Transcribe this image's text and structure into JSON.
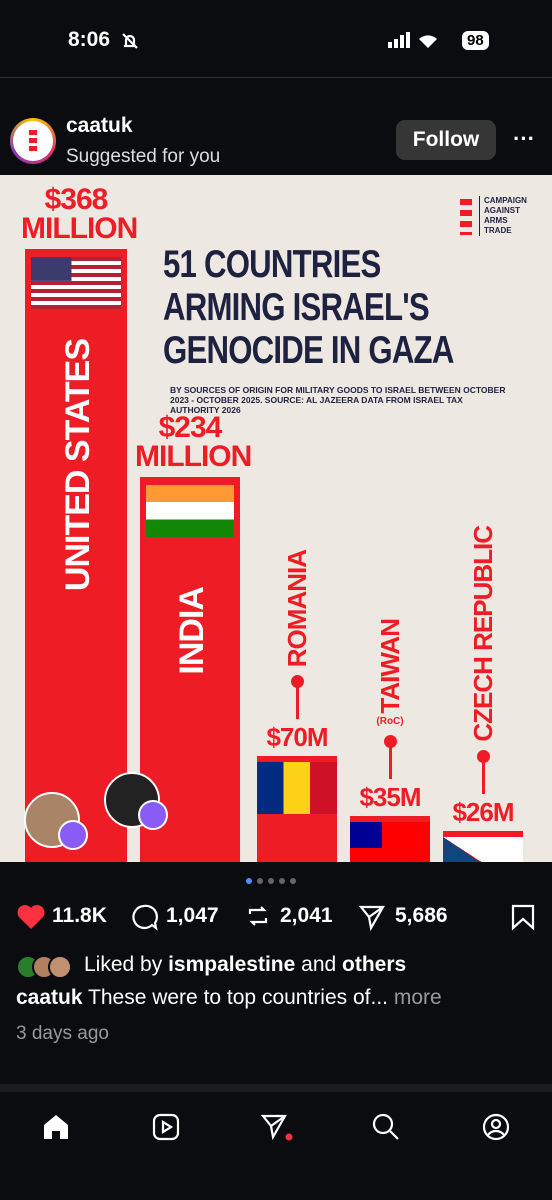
{
  "status_bar": {
    "time": "8:06",
    "battery": "98"
  },
  "post": {
    "username": "caatuk",
    "subtitle": "Suggested for you",
    "follow": "Follow",
    "chart": {
      "type": "bar",
      "title": "51 COUNTRIES ARMING ISRAEL'S GENOCIDE IN GAZA",
      "subtitle": "BY SOURCES OF ORIGIN FOR MILITARY GOODS TO ISRAEL BETWEEN OCTOBER 2023 - OCTOBER 2025. SOURCE: AL JAZEERA DATA FROM ISRAEL TAX AUTHORITY 2026",
      "source_logo": "CAMPAIGN AGAINST ARMS TRADE",
      "categories": [
        "UNITED STATES",
        "INDIA",
        "ROMANIA",
        "TAIWAN",
        "CZECH REPUBLIC"
      ],
      "category_notes": [
        null,
        null,
        null,
        "(RoC)",
        null
      ],
      "values": [
        368,
        234,
        70,
        35,
        26
      ],
      "value_labels": [
        "$368 MILLION",
        "$234 MILLION",
        "$70M",
        "$35M",
        "$26M"
      ],
      "color": "#ee1c25"
    },
    "likes": "11.8K",
    "comments": "1,047",
    "reposts": "2,041",
    "shares": "5,686",
    "liked_by": {
      "prefix": "Liked by",
      "user": "ismpalestine",
      "middle": "and",
      "others": "others"
    },
    "caption": {
      "username": "caatuk",
      "text": "These were to top countries of...",
      "more": "more"
    },
    "time": "3 days ago"
  }
}
